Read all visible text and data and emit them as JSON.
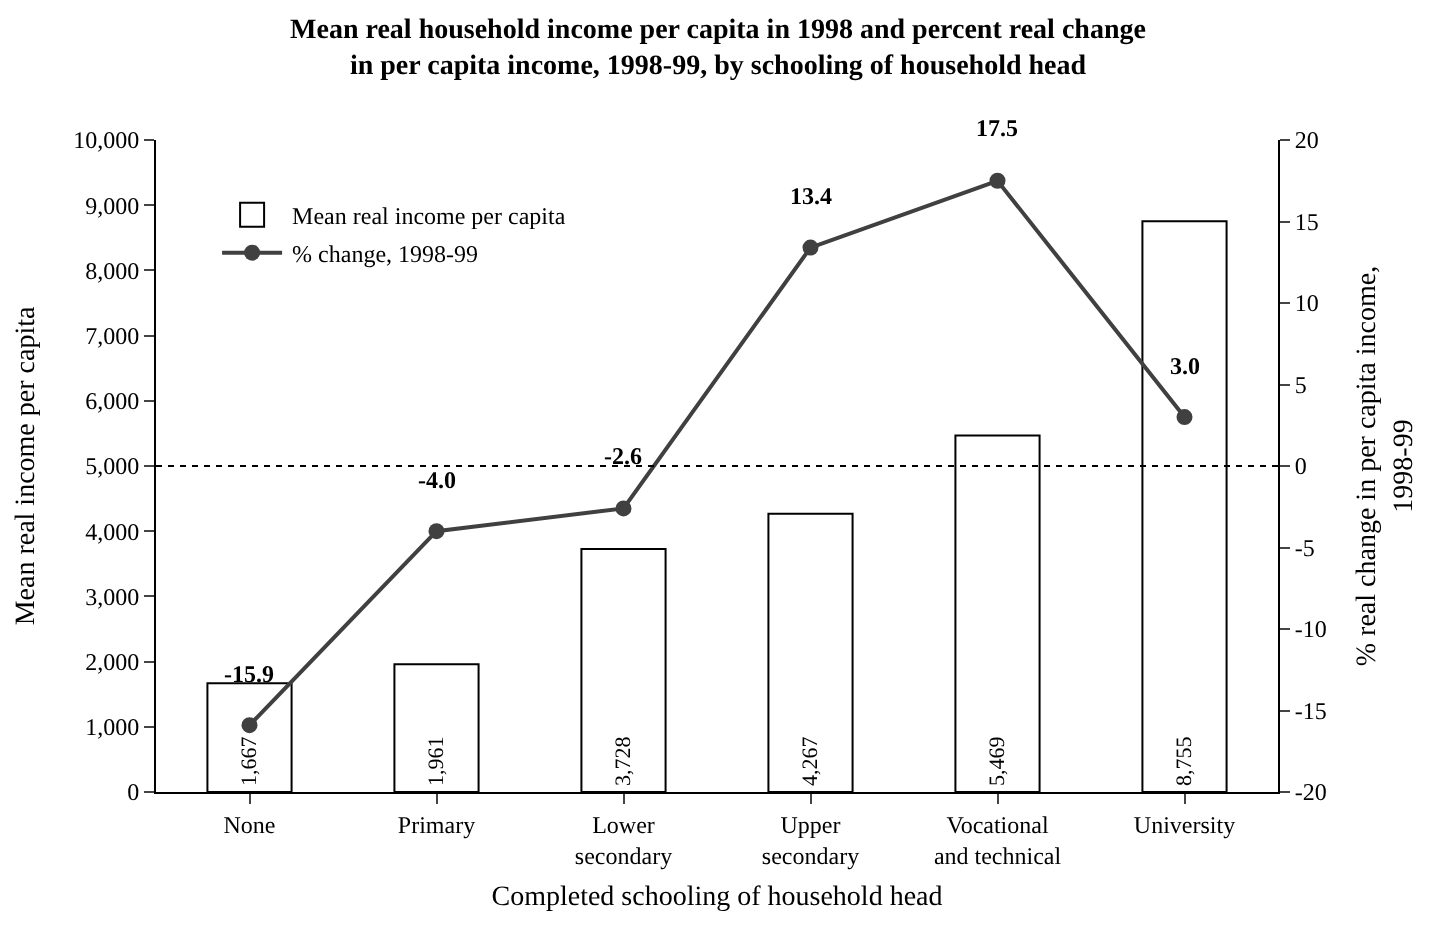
{
  "chart_data": {
    "type": "bar",
    "title": "Mean real household income per capita in 1998 and percent real change\nin per capita income, 1998-99, by schooling of household head",
    "xlabel": "Completed schooling of household head",
    "ylabel": "Mean real income per capita",
    "y2label": "% real change in per capita income,\n1998-99",
    "categories": [
      "None",
      "Primary",
      "Lower\nsecondary",
      "Upper\nsecondary",
      "Vocational\nand technical",
      "University"
    ],
    "series": [
      {
        "name": "Mean real income per capita",
        "color": "#ffffff",
        "values": [
          1667,
          1961,
          3728,
          4267,
          5469,
          8755
        ],
        "value_labels": [
          "1,667",
          "1,961",
          "3,728",
          "4,267",
          "5,469",
          "8,755"
        ]
      },
      {
        "name": "% change, 1998-99",
        "type": "line",
        "axis": "y2",
        "color": "#404040",
        "values": [
          -15.9,
          -4.0,
          -2.6,
          13.4,
          17.5,
          3.0
        ],
        "value_labels": [
          "-15.9",
          "-4.0",
          "-2.6",
          "13.4",
          "17.5",
          "3.0"
        ]
      }
    ],
    "ylim": [
      0,
      10000
    ],
    "yticks": [
      0,
      {
        "value": 1000,
        "label": "1,000"
      },
      {
        "value": 2000,
        "label": "2,000"
      },
      {
        "value": 3000,
        "label": "3,000"
      },
      {
        "value": 4000,
        "label": "4,000"
      },
      {
        "value": 5000,
        "label": "5,000"
      },
      {
        "value": 6000,
        "label": "6,000"
      },
      {
        "value": 7000,
        "label": "7,000"
      },
      {
        "value": 8000,
        "label": "8,000"
      },
      {
        "value": 9000,
        "label": "9,000"
      },
      {
        "value": 10000,
        "label": "10,000"
      }
    ],
    "y2lim": [
      -20,
      20
    ],
    "y2ticks": [
      -20,
      -15,
      -10,
      -5,
      0,
      5,
      10,
      15,
      20
    ],
    "ref_lines": [
      {
        "axis": "y2",
        "value": 0,
        "line_style": "dotted",
        "color": "#000000"
      }
    ],
    "legend": "top left",
    "grid": false,
    "marker": "circle",
    "line_style": "solid"
  }
}
